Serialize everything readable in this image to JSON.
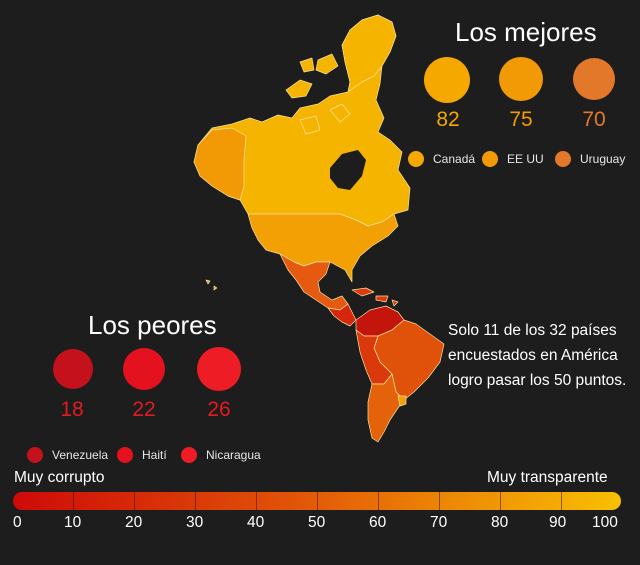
{
  "best": {
    "title": "Los mejores",
    "items": [
      {
        "country": "Canadá",
        "score": "82",
        "value": 82,
        "color": "#f5a800"
      },
      {
        "country": "EE UU",
        "score": "75",
        "value": 75,
        "color": "#f29a05"
      },
      {
        "country": "Uruguay",
        "score": "70",
        "value": 70,
        "color": "#e4782a"
      }
    ]
  },
  "worst": {
    "title": "Los peores",
    "items": [
      {
        "country": "Venezuela",
        "score": "18",
        "value": 18,
        "color": "#c5111b"
      },
      {
        "country": "Haití",
        "score": "22",
        "value": 22,
        "color": "#e3121e"
      },
      {
        "country": "Nicaragua",
        "score": "26",
        "value": 26,
        "color": "#ee1c24"
      }
    ]
  },
  "note": "Solo 11 de los 32 países encuestados en América logro pasar los 50 puntos.",
  "scale": {
    "left_label": "Muy corrupto",
    "right_label": "Muy transparente",
    "ticks": [
      "0",
      "10",
      "20",
      "30",
      "40",
      "50",
      "60",
      "70",
      "80",
      "90",
      "100"
    ]
  },
  "colors": {
    "background": "#1d1d1d",
    "high": "#f5b800",
    "mid": "#e86a10",
    "low": "#cf0a08"
  }
}
